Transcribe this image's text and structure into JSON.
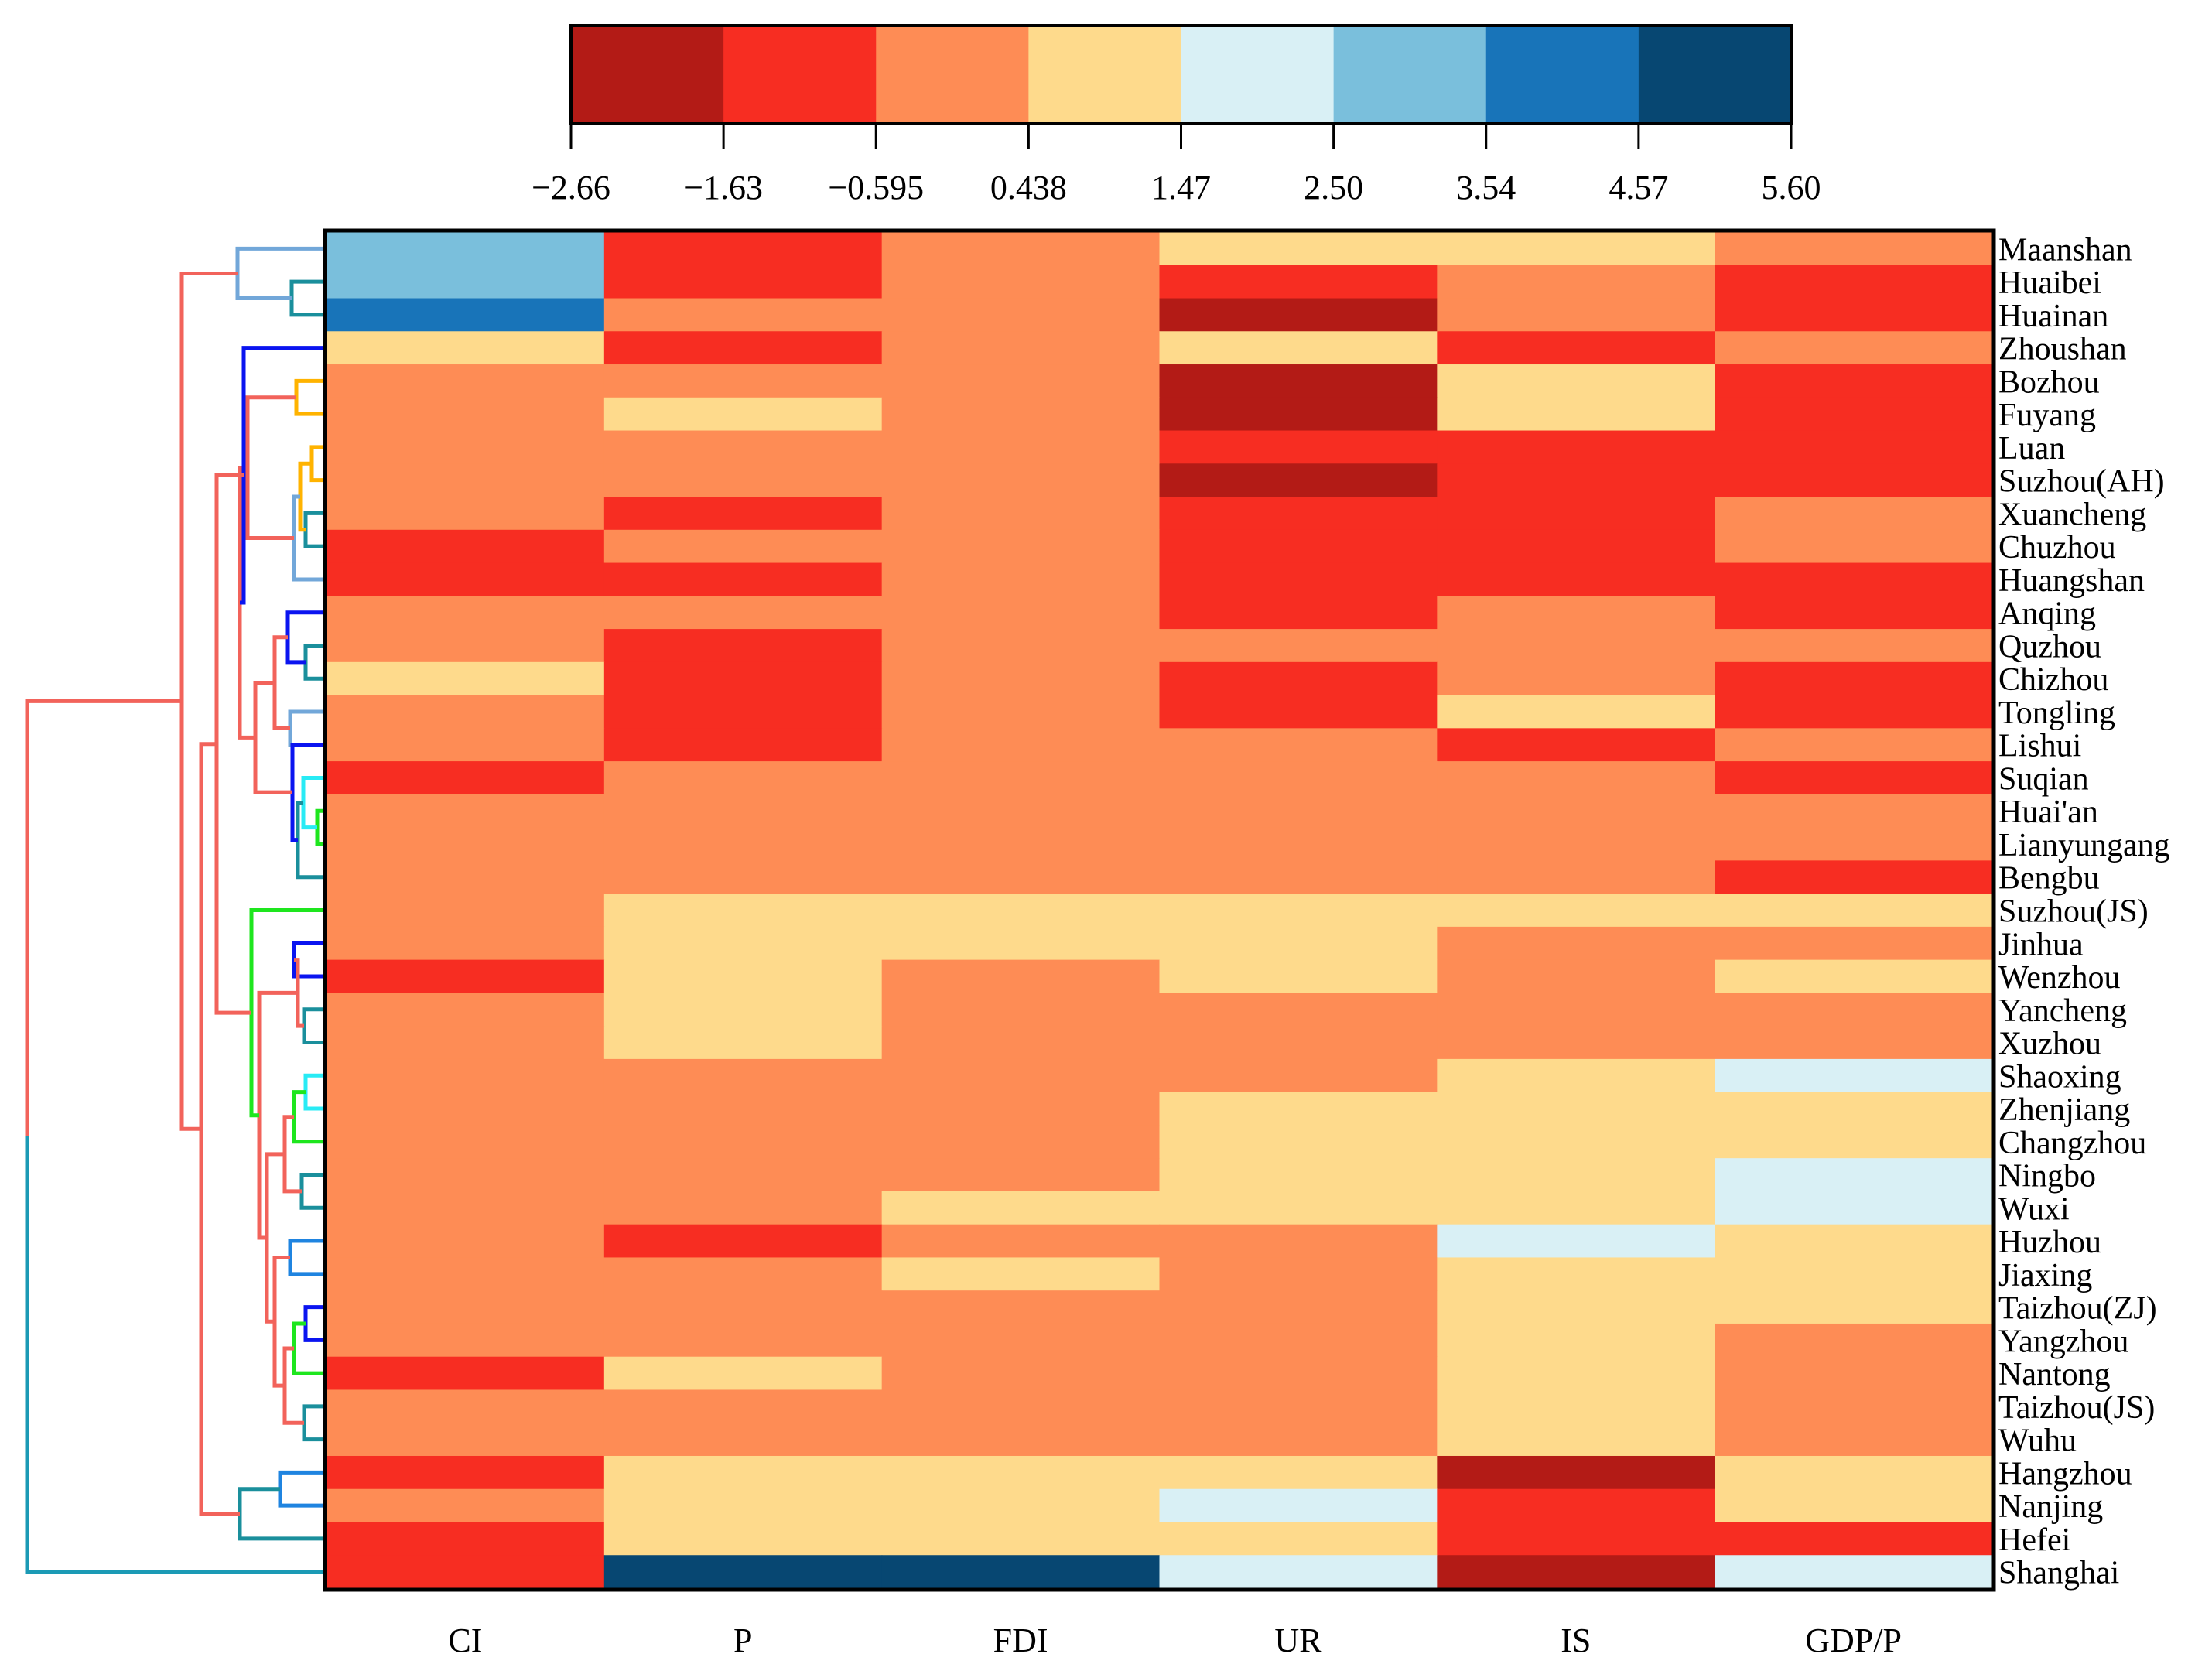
{
  "chart_data": {
    "type": "heatmap",
    "columns": [
      "CI",
      "P",
      "FDI",
      "UR",
      "IS",
      "GDP/P"
    ],
    "rows": [
      "Maanshan",
      "Huaibei",
      "Huainan",
      "Zhoushan",
      "Bozhou",
      "Fuyang",
      "Luan",
      "Suzhou(AH)",
      "Xuancheng",
      "Chuzhou",
      "Huangshan",
      "Anqing",
      "Quzhou",
      "Chizhou",
      "Tongling",
      "Lishui",
      "Suqian",
      "Huai'an",
      "Lianyungang",
      "Bengbu",
      "Suzhou(JS)",
      "Jinhua",
      "Wenzhou",
      "Yancheng",
      "Xuzhou",
      "Shaoxing",
      "Zhenjiang",
      "Changzhou",
      "Ningbo",
      "Wuxi",
      "Huzhou",
      "Jiaxing",
      "Taizhou(ZJ)",
      "Yangzhou",
      "Nantong",
      "Taizhou(JS)",
      "Wuhu",
      "Hangzhou",
      "Nanjing",
      "Hefei",
      "Shanghai"
    ],
    "colorbar": {
      "ticks": [
        "−2.66",
        "−1.63",
        "−0.595",
        "0.438",
        "1.47",
        "2.50",
        "3.54",
        "4.57",
        "5.60"
      ],
      "tick_values": [
        -2.66,
        -1.63,
        -0.595,
        0.438,
        1.47,
        2.5,
        3.54,
        4.57,
        5.6
      ],
      "colors": [
        "#b31b16",
        "#f72d22",
        "#fe8c55",
        "#feda8c",
        "#d9f0f5",
        "#7abfdc",
        "#1874b9",
        "#074772"
      ]
    },
    "bins": [
      [
        5,
        1,
        2,
        3,
        3,
        2
      ],
      [
        5,
        1,
        2,
        1,
        2,
        1
      ],
      [
        6,
        2,
        2,
        0,
        2,
        1
      ],
      [
        3,
        1,
        2,
        3,
        1,
        2
      ],
      [
        2,
        2,
        2,
        0,
        3,
        1
      ],
      [
        2,
        3,
        2,
        0,
        3,
        1
      ],
      [
        2,
        2,
        2,
        1,
        1,
        1
      ],
      [
        2,
        2,
        2,
        0,
        1,
        1
      ],
      [
        2,
        1,
        2,
        1,
        1,
        2
      ],
      [
        1,
        2,
        2,
        1,
        1,
        2
      ],
      [
        1,
        1,
        2,
        1,
        1,
        1
      ],
      [
        2,
        2,
        2,
        1,
        2,
        1
      ],
      [
        2,
        1,
        2,
        2,
        2,
        2
      ],
      [
        3,
        1,
        2,
        1,
        2,
        1
      ],
      [
        2,
        1,
        2,
        1,
        3,
        1
      ],
      [
        2,
        1,
        2,
        2,
        1,
        2
      ],
      [
        1,
        2,
        2,
        2,
        2,
        1
      ],
      [
        2,
        2,
        2,
        2,
        2,
        2
      ],
      [
        2,
        2,
        2,
        2,
        2,
        2
      ],
      [
        2,
        2,
        2,
        2,
        2,
        1
      ],
      [
        2,
        3,
        3,
        3,
        3,
        3
      ],
      [
        2,
        3,
        3,
        3,
        2,
        2
      ],
      [
        1,
        3,
        2,
        3,
        2,
        3
      ],
      [
        2,
        3,
        2,
        2,
        2,
        2
      ],
      [
        2,
        3,
        2,
        2,
        2,
        2
      ],
      [
        2,
        2,
        2,
        2,
        3,
        4
      ],
      [
        2,
        2,
        2,
        3,
        3,
        3
      ],
      [
        2,
        2,
        2,
        3,
        3,
        3
      ],
      [
        2,
        2,
        2,
        3,
        3,
        4
      ],
      [
        2,
        2,
        3,
        3,
        3,
        4
      ],
      [
        2,
        1,
        2,
        2,
        4,
        3
      ],
      [
        2,
        2,
        3,
        2,
        3,
        3
      ],
      [
        2,
        2,
        2,
        2,
        3,
        3
      ],
      [
        2,
        2,
        2,
        2,
        3,
        2
      ],
      [
        1,
        3,
        2,
        2,
        3,
        2
      ],
      [
        2,
        2,
        2,
        2,
        3,
        2
      ],
      [
        2,
        2,
        2,
        2,
        3,
        2
      ],
      [
        1,
        3,
        3,
        3,
        0,
        3
      ],
      [
        2,
        3,
        3,
        4,
        1,
        3
      ],
      [
        1,
        3,
        3,
        3,
        1,
        1
      ],
      [
        1,
        7,
        7,
        4,
        0,
        4
      ]
    ],
    "dendrogram_colors": {
      "root": "#f2635b",
      "shanghai": "#1b9ab5",
      "light_blue": "#72a7d9",
      "teal": "#1a8f9c",
      "blue": "#0a14f0",
      "orange": "#ffb300",
      "green": "#1ee61e",
      "cyan": "#28ebf5",
      "mid_blue": "#1f84e0"
    }
  }
}
